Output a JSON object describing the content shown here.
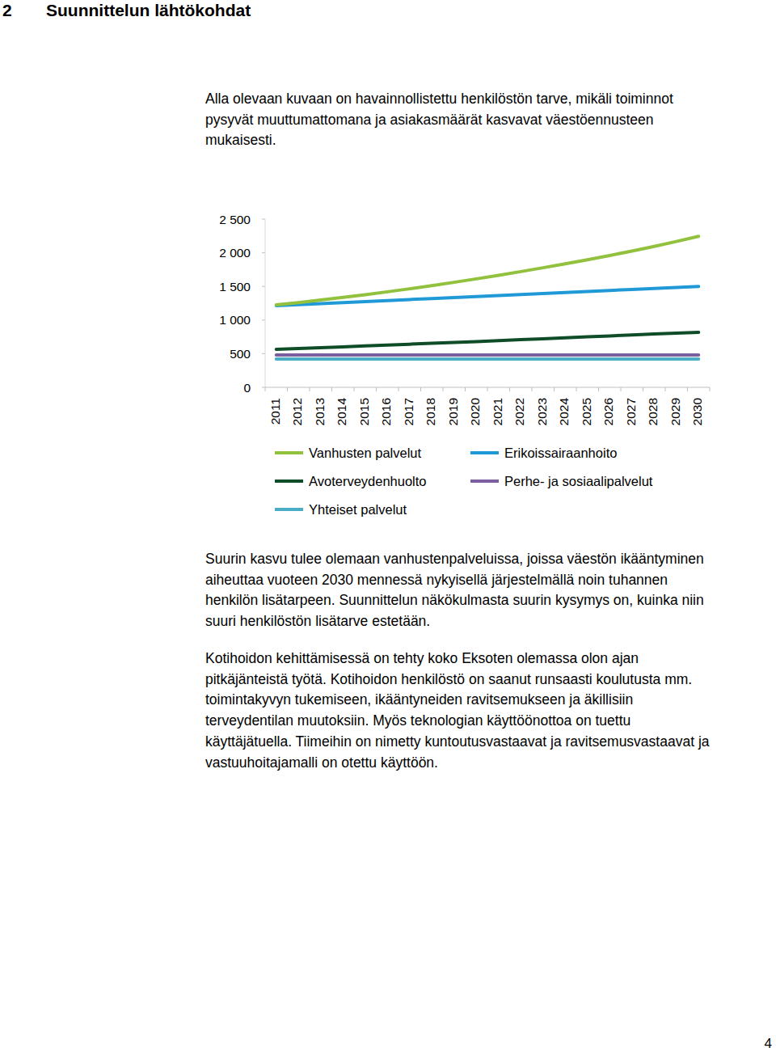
{
  "heading": {
    "number": "2",
    "title": "Suunnittelun lähtökohdat"
  },
  "intro": [
    "Alla olevaan kuvaan on havainnollistettu henkilöstön tarve, mikäli toiminnot",
    "pysyvät muuttumattomana ja asiakasmäärät kasvavat väestöennusteen",
    "mukaisesti."
  ],
  "chart_data": {
    "type": "line",
    "categories": [
      "2011",
      "2012",
      "2013",
      "2014",
      "2015",
      "2016",
      "2017",
      "2018",
      "2019",
      "2020",
      "2021",
      "2022",
      "2023",
      "2024",
      "2025",
      "2026",
      "2027",
      "2028",
      "2029",
      "2030"
    ],
    "series": [
      {
        "name": "Vanhusten palvelut",
        "color": "#92c13e",
        "values": [
          1225,
          1260,
          1297,
          1336,
          1377,
          1420,
          1465,
          1512,
          1561,
          1612,
          1665,
          1720,
          1777,
          1836,
          1897,
          1960,
          2025,
          2095,
          2168,
          2245
        ]
      },
      {
        "name": "Erikoissairaanhoito",
        "color": "#1f9ad6",
        "values": [
          1215,
          1230,
          1245,
          1260,
          1275,
          1290,
          1305,
          1320,
          1335,
          1350,
          1365,
          1380,
          1395,
          1410,
          1425,
          1440,
          1455,
          1470,
          1485,
          1500
        ]
      },
      {
        "name": "Avoterveydenhuolto",
        "color": "#0e4d28",
        "values": [
          565,
          577,
          590,
          602,
          615,
          628,
          641,
          654,
          667,
          680,
          694,
          708,
          722,
          736,
          750,
          764,
          778,
          792,
          805,
          818
        ]
      },
      {
        "name": "Perhe- ja sosiaalipalvelut",
        "color": "#7a5ea0",
        "values": [
          480,
          480,
          480,
          480,
          480,
          480,
          480,
          480,
          480,
          480,
          480,
          480,
          480,
          480,
          480,
          480,
          480,
          480,
          480,
          480
        ]
      },
      {
        "name": "Yhteiset palvelut",
        "color": "#4bacc6",
        "values": [
          420,
          420,
          420,
          420,
          420,
          420,
          420,
          420,
          420,
          420,
          420,
          420,
          420,
          420,
          420,
          420,
          420,
          420,
          420,
          420
        ]
      }
    ],
    "ylim": [
      0,
      2500
    ],
    "yticks": [
      0,
      500,
      {
        "value": 1000,
        "label": "1 000"
      },
      {
        "value": 1500,
        "label": "1 500"
      },
      {
        "value": 2000,
        "label": "2 000"
      },
      {
        "value": 2500,
        "label": "2 500"
      }
    ],
    "grid": false,
    "legend": "bottom"
  },
  "paragraphs": [
    [
      "Suurin kasvu tulee olemaan vanhustenpalveluissa, joissa väestön ikääntyminen",
      "aiheuttaa vuoteen 2030 mennessä nykyisellä järjestelmällä noin tuhannen",
      "henkilön lisätarpeen. Suunnittelun näkökulmasta suurin kysymys on, kuinka niin",
      "suuri henkilöstön lisätarve estetään."
    ],
    [
      "Kotihoidon kehittämisessä on tehty koko Eksoten olemassa olon ajan",
      "pitkäjänteistä työtä. Kotihoidon henkilöstö on saanut runsaasti koulutusta mm.",
      "toimintakyvyn tukemiseen, ikääntyneiden ravitsemukseen ja äkillisiin",
      "terveydentilan muutoksiin. Myös teknologian käyttöönottoa on tuettu",
      "käyttäjätuella. Tiimeihin on nimetty kuntoutusvastaavat ja ravitsemusvastaavat ja",
      "vastuuhoitajamalli on otettu käyttöön."
    ]
  ],
  "page_number": "4"
}
